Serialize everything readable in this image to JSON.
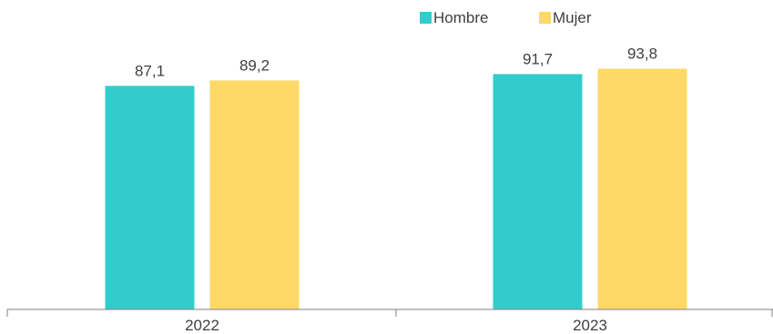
{
  "chart_data": {
    "type": "bar",
    "categories": [
      "2022",
      "2023"
    ],
    "series": [
      {
        "name": "Hombre",
        "color": "#33CCCC",
        "values": [
          87.1,
          91.7
        ]
      },
      {
        "name": "Mujer",
        "color": "#FFD966",
        "values": [
          89.2,
          93.8
        ]
      }
    ],
    "data_labels": [
      [
        "87,1",
        "91,7"
      ],
      [
        "89,2",
        "93,8"
      ]
    ],
    "title": "",
    "xlabel": "",
    "ylabel": "",
    "ylim": [
      0,
      100
    ],
    "grid": false,
    "legend_position": "top-right"
  }
}
